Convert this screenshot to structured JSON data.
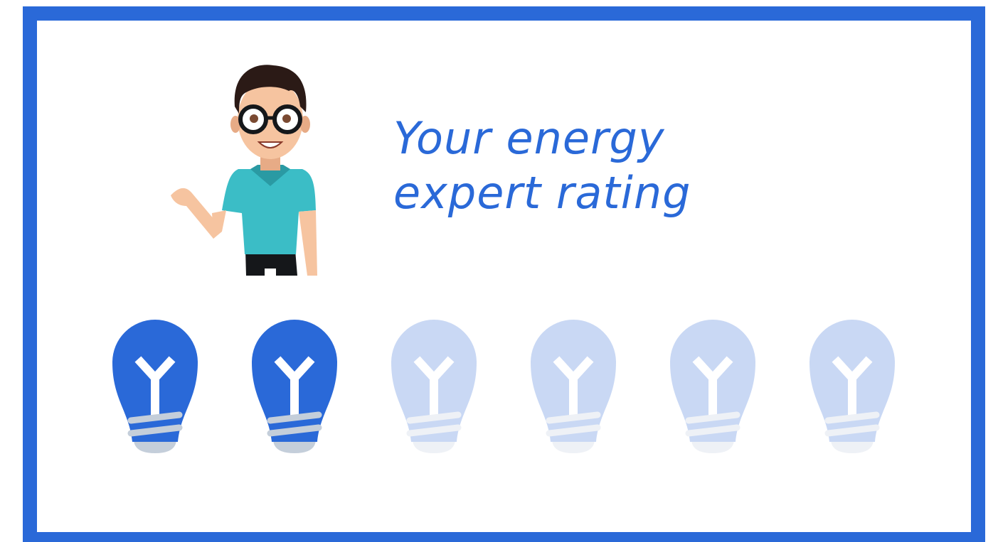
{
  "title": [
    "Your energy",
    "expert rating"
  ],
  "rating": {
    "filled": 2,
    "total": 6,
    "filled_color": "#2a69d8",
    "empty_color": "#c9d8f4"
  }
}
